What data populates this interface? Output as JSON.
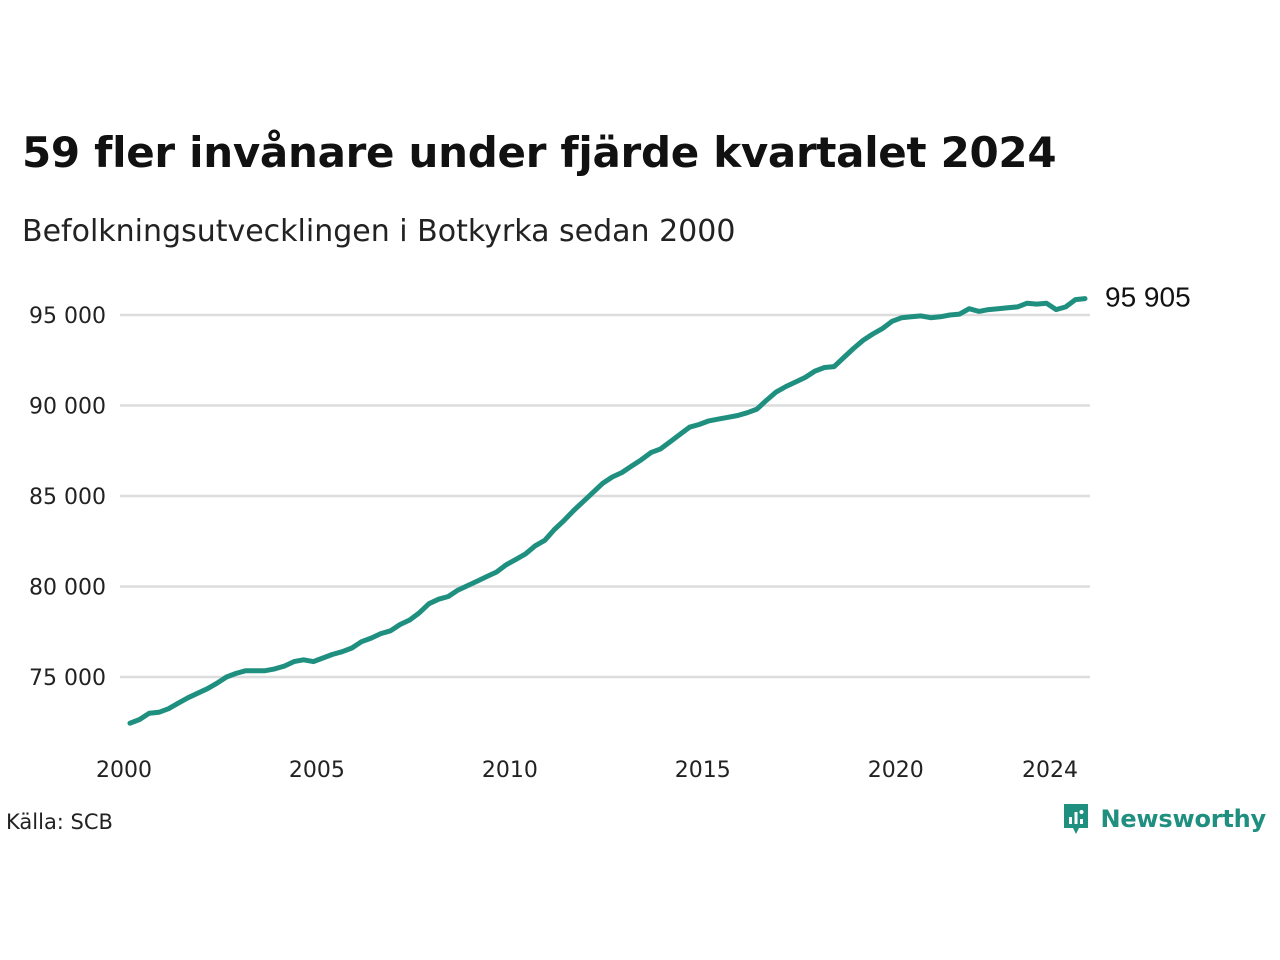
{
  "brand": {
    "logo_text": "Newsworthy",
    "color": "#1f8f7f"
  },
  "source": "Källa: SCB",
  "end_label": "95 905",
  "chart_data": {
    "type": "line",
    "title": "59 fler invånare under fjärde kvartalet 2024",
    "subtitle": "Befolkningsutvecklingen i Botkyrka sedan 2000",
    "xlabel": "",
    "ylabel": "",
    "grid": true,
    "line_color": "#1f8f7f",
    "grid_color": "#dddddd",
    "x_ticks": [
      2000,
      2005,
      2010,
      2015,
      2020,
      2024
    ],
    "y_ticks": [
      {
        "value": 75000,
        "label": "75 000"
      },
      {
        "value": 80000,
        "label": "80 000"
      },
      {
        "value": 85000,
        "label": "85 000"
      },
      {
        "value": 90000,
        "label": "90 000"
      },
      {
        "value": 95000,
        "label": "95 000"
      }
    ],
    "xlim": [
      2000,
      2025
    ],
    "ylim": [
      71500,
      97000
    ],
    "series": [
      {
        "x": [
          2000.0,
          2000.25,
          2000.5,
          2000.75,
          2001.0,
          2001.25,
          2001.5,
          2001.75,
          2002.0,
          2002.25,
          2002.5,
          2002.75,
          2003.0,
          2003.25,
          2003.5,
          2003.75,
          2004.0,
          2004.25,
          2004.5,
          2004.75,
          2005.0,
          2005.25,
          2005.5,
          2005.75,
          2006.0,
          2006.25,
          2006.5,
          2006.75,
          2007.0,
          2007.25,
          2007.5,
          2007.75,
          2008.0,
          2008.25,
          2008.5,
          2008.75,
          2009.0,
          2009.25,
          2009.5,
          2009.75,
          2010.0,
          2010.25,
          2010.5,
          2010.75,
          2011.0,
          2011.25,
          2011.5,
          2011.75,
          2012.0,
          2012.25,
          2012.5,
          2012.75,
          2013.0,
          2013.25,
          2013.5,
          2013.75,
          2014.0,
          2014.25,
          2014.5,
          2014.75,
          2015.0,
          2015.25,
          2015.5,
          2015.75,
          2016.0,
          2016.25,
          2016.5,
          2016.75,
          2017.0,
          2017.25,
          2017.5,
          2017.75,
          2018.0,
          2018.25,
          2018.5,
          2018.75,
          2019.0,
          2019.25,
          2019.5,
          2019.75,
          2020.0,
          2020.25,
          2020.5,
          2020.75,
          2021.0,
          2021.25,
          2021.5,
          2021.75,
          2022.0,
          2022.25,
          2022.5,
          2022.75,
          2023.0,
          2023.25,
          2023.5,
          2023.75,
          2024.0,
          2024.25,
          2024.5,
          2024.75
        ],
        "values": [
          72450,
          72650,
          73000,
          73050,
          73250,
          73550,
          73850,
          74100,
          74350,
          74650,
          75000,
          75200,
          75350,
          75350,
          75350,
          75450,
          75600,
          75850,
          75950,
          75850,
          76050,
          76250,
          76400,
          76600,
          76950,
          77150,
          77400,
          77550,
          77900,
          78150,
          78550,
          79050,
          79300,
          79450,
          79800,
          80050,
          80300,
          80550,
          80800,
          81200,
          81500,
          81800,
          82250,
          82550,
          83150,
          83650,
          84200,
          84700,
          85200,
          85700,
          86050,
          86300,
          86650,
          87000,
          87400,
          87600,
          88000,
          88400,
          88800,
          88950,
          89150,
          89250,
          89350,
          89450,
          89600,
          89800,
          90300,
          90750,
          91050,
          91300,
          91550,
          91900,
          92100,
          92150,
          92650,
          93150,
          93600,
          93950,
          94250,
          94650,
          94850,
          94900,
          94950,
          94850,
          94900,
          95000,
          95050,
          95350,
          95200,
          95300,
          95350,
          95400,
          95450,
          95650,
          95600,
          95650,
          95300,
          95450,
          95850,
          95905
        ]
      }
    ]
  }
}
